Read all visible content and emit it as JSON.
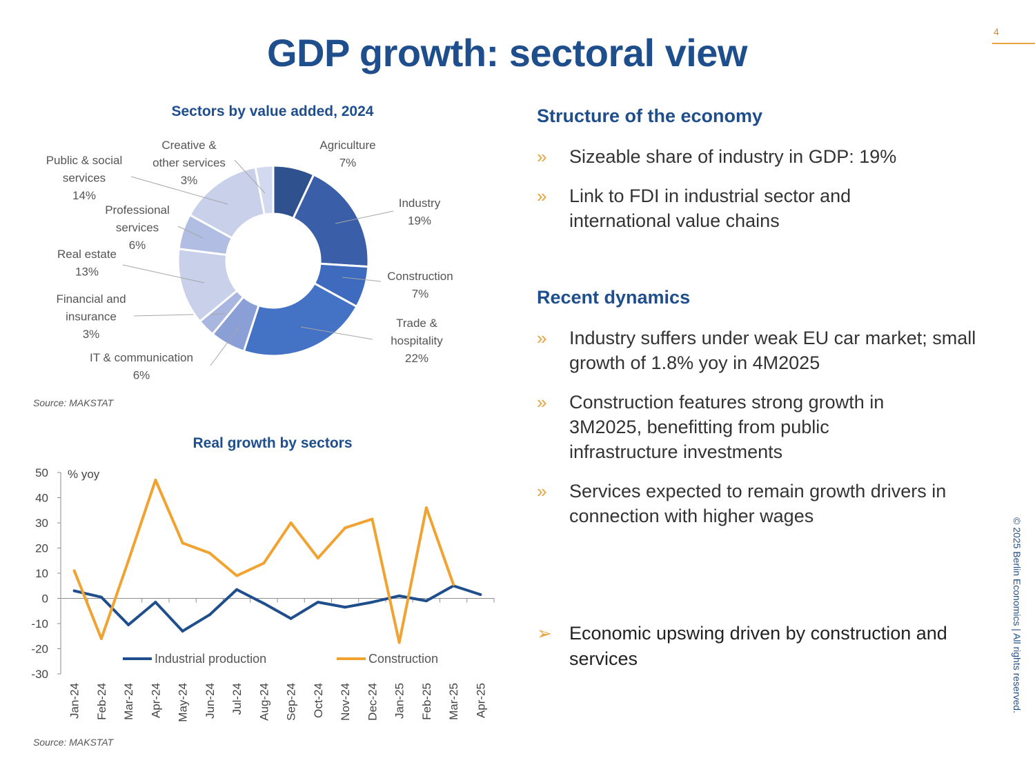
{
  "page": {
    "title": "GDP growth: sectoral view",
    "number": "4",
    "copyright": "© 2025 Berlin Economics | All rights reserved."
  },
  "right": {
    "structure_heading": "Structure of the economy",
    "structure_bullets": [
      "Sizeable share of industry in GDP: 19%",
      "Link to FDI in industrial sector and international value chains"
    ],
    "dynamics_heading": "Recent dynamics",
    "dynamics_bullets": [
      "Industry suffers under weak EU car market; small growth of 1.8% yoy in 4M2025",
      "Construction features strong growth in 3M2025,  benefitting from public infrastructure investments",
      "Services expected to remain growth drivers in connection with higher wages"
    ],
    "conclusion": "Economic upswing driven by construction and services",
    "bullet_mark": "»",
    "conclusion_mark": "➢"
  },
  "colors": {
    "title": "#1f4e8c",
    "accent": "#e8a33d",
    "industrial": "#1f4e8c",
    "construction": "#f0a330"
  },
  "chart_data": [
    {
      "type": "pie",
      "title": "Sectors by value added, 2024",
      "source": "Source: MAKSTAT",
      "slices": [
        {
          "label": [
            "Agriculture",
            "7%"
          ],
          "value": 7,
          "color": "#2f528f"
        },
        {
          "label": [
            "Industry",
            "19%"
          ],
          "value": 19,
          "color": "#3a5ea8"
        },
        {
          "label": [
            "Construction",
            "7%"
          ],
          "value": 7,
          "color": "#3f6bbf"
        },
        {
          "label": [
            "Trade &",
            "hospitality",
            "22%"
          ],
          "value": 22,
          "color": "#4472c4"
        },
        {
          "label": [
            "IT & communication",
            "6%"
          ],
          "value": 6,
          "color": "#8a9fd6"
        },
        {
          "label": [
            "Financial and",
            "insurance",
            "3%"
          ],
          "value": 3,
          "color": "#a9b6e0"
        },
        {
          "label": [
            "Real estate",
            "13%"
          ],
          "value": 13,
          "color": "#c9d0ea"
        },
        {
          "label": [
            "Professional",
            "services",
            "6%"
          ],
          "value": 6,
          "color": "#b1bde3"
        },
        {
          "label": [
            "Public & social",
            "services",
            "14%"
          ],
          "value": 14,
          "color": "#c9d0ea"
        },
        {
          "label": [
            "Creative &",
            "other services",
            "3%"
          ],
          "value": 3,
          "color": "#d3d9ef"
        }
      ]
    },
    {
      "type": "line",
      "title": "Real growth by sectors",
      "ylabel": "% yoy",
      "source": "Source: MAKSTAT",
      "ylim": [
        -30,
        50
      ],
      "yticks": [
        50,
        40,
        30,
        20,
        10,
        0,
        -10,
        -20,
        -30
      ],
      "categories": [
        "Jan-24",
        "Feb-24",
        "Mar-24",
        "Apr-24",
        "May-24",
        "Jun-24",
        "Jul-24",
        "Aug-24",
        "Sep-24",
        "Oct-24",
        "Nov-24",
        "Dec-24",
        "Jan-25",
        "Feb-25",
        "Mar-25",
        "Apr-25"
      ],
      "series": [
        {
          "name": "Industrial production",
          "color": "#1f4e8c",
          "values": [
            3,
            0.5,
            -10.5,
            -1.5,
            -13,
            -6.5,
            3.5,
            -2,
            -8,
            -1.5,
            -3.5,
            -1.5,
            1,
            -1,
            5,
            1.5
          ]
        },
        {
          "name": "Construction",
          "color": "#f0a330",
          "values": [
            11,
            -16,
            15,
            47,
            22,
            18,
            9,
            14,
            30,
            16,
            28,
            31.5,
            -17.5,
            36,
            5.5,
            null
          ]
        }
      ]
    }
  ]
}
